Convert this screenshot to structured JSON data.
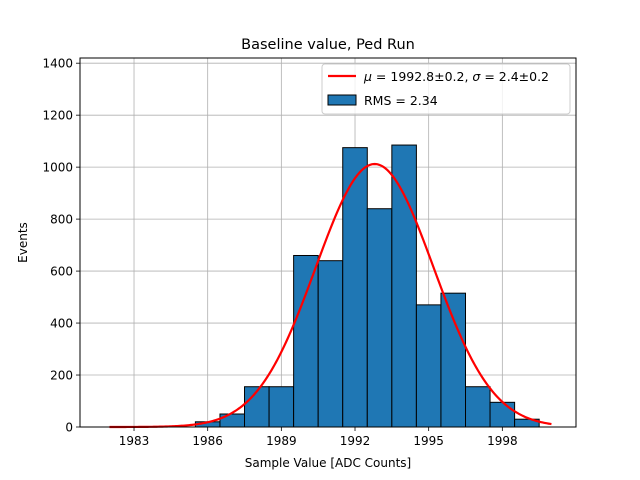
{
  "chart_data": {
    "type": "bar",
    "title": "Baseline value, Ped Run",
    "xlabel": "Sample Value [ADC Counts]",
    "ylabel": "Events",
    "xlim": [
      1980.8,
      2001.0
    ],
    "ylim": [
      0,
      1420
    ],
    "xticks": [
      1983,
      1986,
      1989,
      1992,
      1995,
      1998
    ],
    "yticks": [
      0,
      200,
      400,
      600,
      800,
      1000,
      1200,
      1400
    ],
    "grid": true,
    "legend_position": "top-right",
    "bin_edges": [
      1985.5,
      1986.5,
      1987.5,
      1988.5,
      1989.5,
      1990.5,
      1991.5,
      1992.5,
      1993.5,
      1994.5,
      1995.5,
      1996.5,
      1997.5,
      1998.5,
      1999.5
    ],
    "values": [
      20,
      50,
      155,
      155,
      660,
      640,
      1075,
      840,
      1085,
      470,
      515,
      155,
      95,
      30
    ],
    "bar_color": "#1f77b4",
    "fit_color": "#ff0000",
    "fit": {
      "mu": 1992.8,
      "sigma": 2.4,
      "amplitude": 1012,
      "x_range": [
        1982.0,
        2000.0
      ]
    },
    "legend": [
      {
        "label_math": "μ",
        "label_mid1": " = 1992.8±0.2, ",
        "label_math2": "σ",
        "label_mid2": " = 2.4±0.2",
        "kind": "line"
      },
      {
        "label": "RMS = 2.34",
        "kind": "patch"
      }
    ]
  }
}
